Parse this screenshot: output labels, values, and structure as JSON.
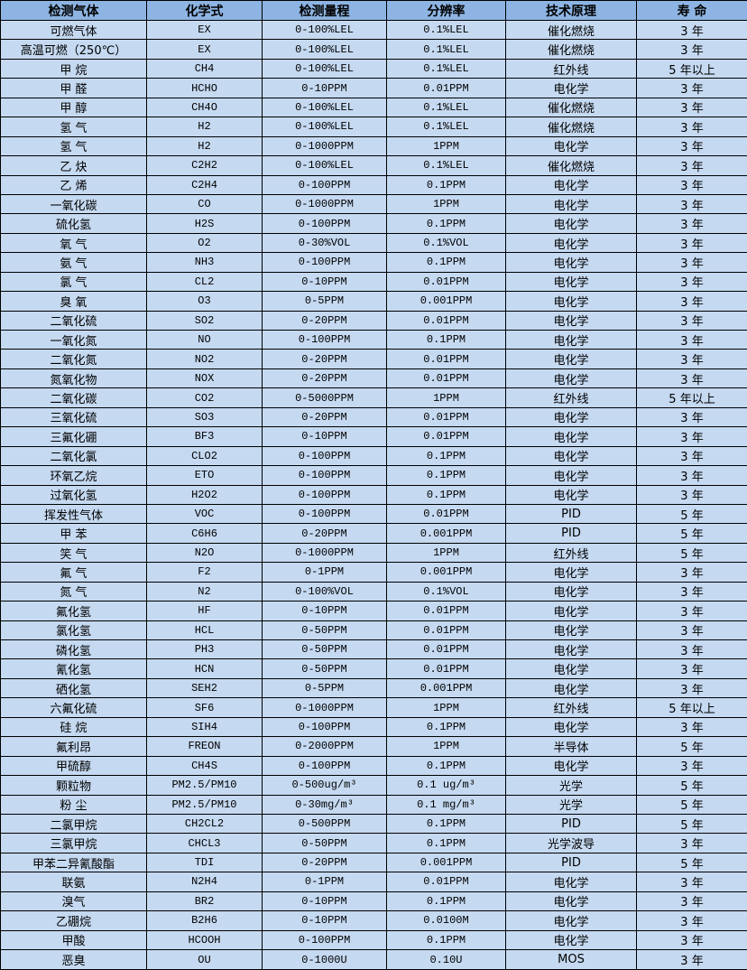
{
  "colors": {
    "header_bg": "#8db4e2",
    "row_bg": "#c5d9f1",
    "border": "#000000"
  },
  "headers": [
    "检测气体",
    "化学式",
    "检测量程",
    "分辨率",
    "技术原理",
    "寿 命"
  ],
  "rows": [
    [
      "可燃气体",
      "EX",
      "0-100%LEL",
      "0.1%LEL",
      "催化燃烧",
      "3 年"
    ],
    [
      "高温可燃（250℃）",
      "EX",
      "0-100%LEL",
      "0.1%LEL",
      "催化燃烧",
      "3 年"
    ],
    [
      "甲 烷",
      "CH4",
      "0-100%LEL",
      "0.1%LEL",
      "红外线",
      "5 年以上"
    ],
    [
      "甲 醛",
      "HCHO",
      "0-10PPM",
      "0.01PPM",
      "电化学",
      "3 年"
    ],
    [
      "甲 醇",
      "CH4O",
      "0-100%LEL",
      "0.1%LEL",
      "催化燃烧",
      "3 年"
    ],
    [
      "氢 气",
      "H2",
      "0-100%LEL",
      "0.1%LEL",
      "催化燃烧",
      "3 年"
    ],
    [
      "氢 气",
      "H2",
      "0-1000PPM",
      "1PPM",
      "电化学",
      "3 年"
    ],
    [
      "乙 炔",
      "C2H2",
      "0-100%LEL",
      "0.1%LEL",
      "催化燃烧",
      "3 年"
    ],
    [
      "乙 烯",
      "C2H4",
      "0-100PPM",
      "0.1PPM",
      "电化学",
      "3 年"
    ],
    [
      "一氧化碳",
      "CO",
      "0-1000PPM",
      "1PPM",
      "电化学",
      "3 年"
    ],
    [
      "硫化氢",
      "H2S",
      "0-100PPM",
      "0.1PPM",
      "电化学",
      "3 年"
    ],
    [
      "氧 气",
      "O2",
      "0-30%VOL",
      "0.1%VOL",
      "电化学",
      "3 年"
    ],
    [
      "氨 气",
      "NH3",
      "0-100PPM",
      "0.1PPM",
      "电化学",
      "3 年"
    ],
    [
      "氯 气",
      "CL2",
      "0-10PPM",
      "0.01PPM",
      "电化学",
      "3 年"
    ],
    [
      "臭 氧",
      "O3",
      "0-5PPM",
      "0.001PPM",
      "电化学",
      "3 年"
    ],
    [
      "二氧化硫",
      "SO2",
      "0-20PPM",
      "0.01PPM",
      "电化学",
      "3 年"
    ],
    [
      "一氧化氮",
      "NO",
      "0-100PPM",
      "0.1PPM",
      "电化学",
      "3 年"
    ],
    [
      "二氧化氮",
      "NO2",
      "0-20PPM",
      "0.01PPM",
      "电化学",
      "3 年"
    ],
    [
      "氮氧化物",
      "NOX",
      "0-20PPM",
      "0.01PPM",
      "电化学",
      "3 年"
    ],
    [
      "二氧化碳",
      "CO2",
      "0-5000PPM",
      "1PPM",
      "红外线",
      "5 年以上"
    ],
    [
      "三氧化硫",
      "SO3",
      "0-20PPM",
      "0.01PPM",
      "电化学",
      "3 年"
    ],
    [
      "三氟化硼",
      "BF3",
      "0-10PPM",
      "0.01PPM",
      "电化学",
      "3 年"
    ],
    [
      "二氧化氯",
      "CLO2",
      "0-100PPM",
      "0.1PPM",
      "电化学",
      "3 年"
    ],
    [
      "环氧乙烷",
      "ETO",
      "0-100PPM",
      "0.1PPM",
      "电化学",
      "3 年"
    ],
    [
      "过氧化氢",
      "H2O2",
      "0-100PPM",
      "0.1PPM",
      "电化学",
      "3 年"
    ],
    [
      "挥发性气体",
      "VOC",
      "0-100PPM",
      "0.01PPM",
      "PID",
      "5 年"
    ],
    [
      "甲 苯",
      "C6H6",
      "0-20PPM",
      "0.001PPM",
      "PID",
      "5 年"
    ],
    [
      "笑 气",
      "N2O",
      "0-1000PPM",
      "1PPM",
      "红外线",
      "5 年"
    ],
    [
      "氟 气",
      "F2",
      "0-1PPM",
      "0.001PPM",
      "电化学",
      "3 年"
    ],
    [
      "氮 气",
      "N2",
      "0-100%VOL",
      "0.1%VOL",
      "电化学",
      "3 年"
    ],
    [
      "氟化氢",
      "HF",
      "0-10PPM",
      "0.01PPM",
      "电化学",
      "3 年"
    ],
    [
      "氯化氢",
      "HCL",
      "0-50PPM",
      "0.01PPM",
      "电化学",
      "3 年"
    ],
    [
      "磷化氢",
      "PH3",
      "0-50PPM",
      "0.01PPM",
      "电化学",
      "3 年"
    ],
    [
      "氰化氢",
      "HCN",
      "0-50PPM",
      "0.01PPM",
      "电化学",
      "3 年"
    ],
    [
      "硒化氢",
      "SEH2",
      "0-5PPM",
      "0.001PPM",
      "电化学",
      "3 年"
    ],
    [
      "六氟化硫",
      "SF6",
      "0-1000PPM",
      "1PPM",
      "红外线",
      "5 年以上"
    ],
    [
      "硅 烷",
      "SIH4",
      "0-100PPM",
      "0.1PPM",
      "电化学",
      "3 年"
    ],
    [
      "氟利昂",
      "FREON",
      "0-2000PPM",
      "1PPM",
      "半导体",
      "5 年"
    ],
    [
      "甲硫醇",
      "CH4S",
      "0-100PPM",
      "0.1PPM",
      "电化学",
      "3 年"
    ],
    [
      "颗粒物",
      "PM2.5/PM10",
      "0-500ug/m³",
      "0.1 ug/m³",
      "光学",
      "5 年"
    ],
    [
      "粉 尘",
      "PM2.5/PM10",
      "0-30mg/m³",
      "0.1 mg/m³",
      "光学",
      "5 年"
    ],
    [
      "二氯甲烷",
      "CH2CL2",
      "0-500PPM",
      "0.1PPM",
      "PID",
      "5 年"
    ],
    [
      "三氯甲烷",
      "CHCL3",
      "0-50PPM",
      "0.1PPM",
      "光学波导",
      "3 年"
    ],
    [
      "甲苯二异氰酸酯",
      "TDI",
      "0-20PPM",
      "0.001PPM",
      "PID",
      "5 年"
    ],
    [
      "联氨",
      "N2H4",
      "0-1PPM",
      "0.01PPM",
      "电化学",
      "3 年"
    ],
    [
      "溴气",
      "BR2",
      "0-10PPM",
      "0.1PPM",
      "电化学",
      "3 年"
    ],
    [
      "乙硼烷",
      "B2H6",
      "0-10PPM",
      "0.0100M",
      "电化学",
      "3 年"
    ],
    [
      "甲酸",
      "HCOOH",
      "0-100PPM",
      "0.1PPM",
      "电化学",
      "3 年"
    ],
    [
      "恶臭",
      "OU",
      "0-1000U",
      "0.10U",
      "MOS",
      "3 年"
    ]
  ]
}
